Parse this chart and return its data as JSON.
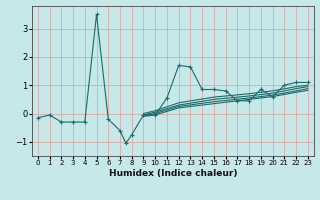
{
  "xlabel": "Humidex (Indice chaleur)",
  "background_color": "#c6e8e8",
  "grid_color": "#dba8a8",
  "line_color": "#1a6b6b",
  "xlim": [
    -0.5,
    23.5
  ],
  "ylim": [
    -1.5,
    3.8
  ],
  "xticks": [
    0,
    1,
    2,
    3,
    4,
    5,
    6,
    7,
    8,
    9,
    10,
    11,
    12,
    13,
    14,
    15,
    16,
    17,
    18,
    19,
    20,
    21,
    22,
    23
  ],
  "yticks": [
    -1,
    0,
    1,
    2,
    3
  ],
  "series_main": [
    [
      0,
      -0.15
    ],
    [
      1,
      -0.05
    ],
    [
      2,
      -0.3
    ],
    [
      3,
      -0.3
    ],
    [
      4,
      -0.3
    ],
    [
      5,
      3.5
    ],
    [
      6,
      -0.2
    ],
    [
      7,
      -0.6
    ],
    [
      7.5,
      -1.05
    ],
    [
      8,
      -0.75
    ],
    [
      9,
      -0.05
    ],
    [
      10,
      -0.05
    ],
    [
      11,
      0.55
    ],
    [
      12,
      1.7
    ],
    [
      13,
      1.65
    ],
    [
      14,
      0.85
    ],
    [
      15,
      0.85
    ],
    [
      16,
      0.8
    ],
    [
      17,
      0.45
    ],
    [
      18,
      0.45
    ],
    [
      19,
      0.85
    ],
    [
      20,
      0.6
    ],
    [
      21,
      1.0
    ],
    [
      22,
      1.1
    ],
    [
      23,
      1.1
    ]
  ],
  "smooth_lines": [
    [
      [
        9,
        -0.1
      ],
      [
        10,
        -0.05
      ],
      [
        12,
        0.2
      ],
      [
        15,
        0.35
      ],
      [
        18,
        0.5
      ],
      [
        20,
        0.6
      ],
      [
        22,
        0.75
      ],
      [
        23,
        0.82
      ]
    ],
    [
      [
        9,
        -0.08
      ],
      [
        10,
        0.0
      ],
      [
        12,
        0.25
      ],
      [
        15,
        0.42
      ],
      [
        18,
        0.55
      ],
      [
        20,
        0.65
      ],
      [
        22,
        0.8
      ],
      [
        23,
        0.88
      ]
    ],
    [
      [
        9,
        -0.05
      ],
      [
        10,
        0.05
      ],
      [
        12,
        0.3
      ],
      [
        15,
        0.5
      ],
      [
        18,
        0.62
      ],
      [
        20,
        0.72
      ],
      [
        22,
        0.88
      ],
      [
        23,
        0.95
      ]
    ],
    [
      [
        9,
        0.0
      ],
      [
        10,
        0.1
      ],
      [
        12,
        0.38
      ],
      [
        15,
        0.58
      ],
      [
        18,
        0.7
      ],
      [
        20,
        0.8
      ],
      [
        22,
        0.95
      ],
      [
        23,
        1.0
      ]
    ]
  ]
}
